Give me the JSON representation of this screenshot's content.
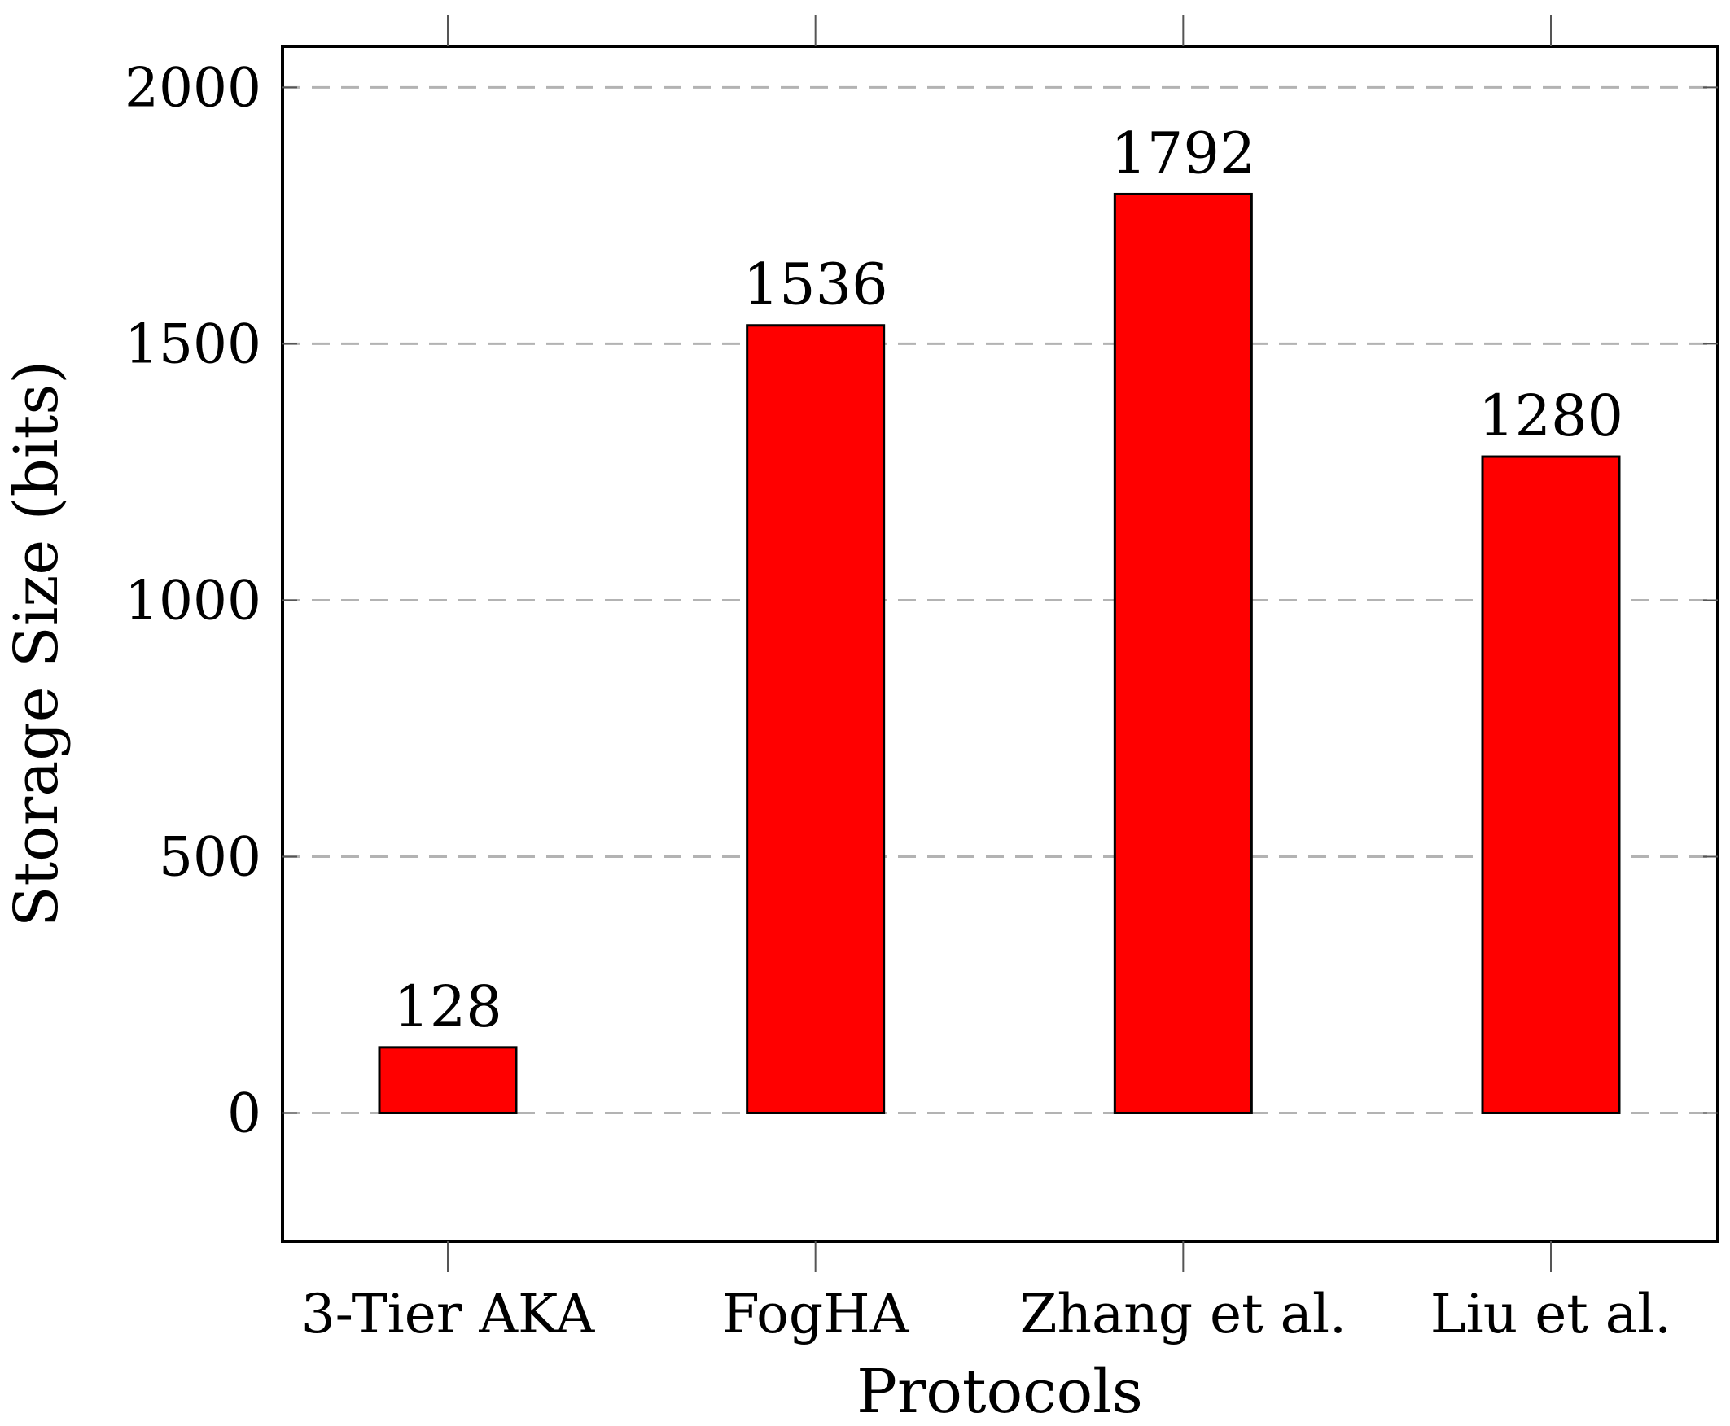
{
  "chart_data": {
    "type": "bar",
    "title": "",
    "xlabel": "Protocols",
    "ylabel": "Storage Size (bits)",
    "categories": [
      "3-Tier AKA",
      "FogHA",
      "Zhang et al.",
      "Liu et al."
    ],
    "values": [
      128,
      1536,
      1792,
      1280
    ],
    "data_labels": [
      "128",
      "1536",
      "1792",
      "1280"
    ],
    "ylim": [
      -250,
      2080
    ],
    "yticks": [
      0,
      500,
      1000,
      1500,
      2000
    ],
    "ytick_labels": [
      "0",
      "500",
      "1000",
      "1500",
      "2000"
    ],
    "grid": "horizontal dashed",
    "legend": "none",
    "bar_color": "#ff0000",
    "bar_edge_color": "#000000",
    "grid_color": "#b3b3b3"
  }
}
